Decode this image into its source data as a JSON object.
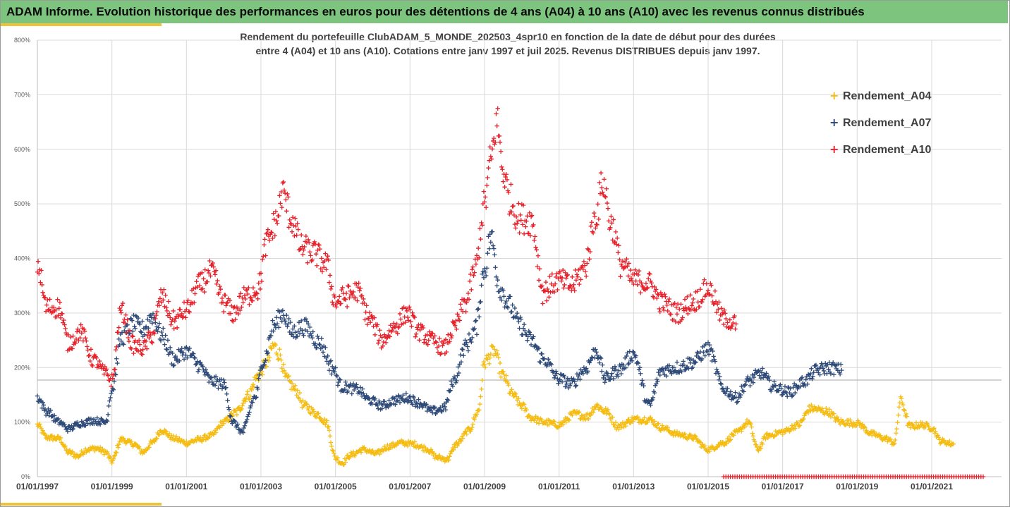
{
  "header": {
    "title": "ADAM Informe. Evolution historique des performances en euros pour des détentions de 4 ans (A04) à 10 ans (A10) avec les revenus connus distribués"
  },
  "colors": {
    "header_bg": "#7dc57f",
    "accent": "#f0c23a",
    "A04": "#f5bd14",
    "A07": "#2e4a78",
    "A10": "#e8202a"
  },
  "chart_data": {
    "type": "scatter",
    "title_line1": "Rendement du portefeuille ClubADAM_5_MONDE_202503_4spr10  en fonction de la date de début pour des durées",
    "title_line2": "entre 4 (A04) et 10 ans (A10). Cotations entre janv 1997 et juil 2025. Revenus DISTRIBUES depuis janv 1997.",
    "xlabel": "",
    "ylabel": "",
    "x_range": [
      "01/01/1997",
      "01/07/2022"
    ],
    "ylim": [
      0,
      800
    ],
    "y_ticks": [
      "0%",
      "100%",
      "200%",
      "300%",
      "400%",
      "500%",
      "600%",
      "700%",
      "800%"
    ],
    "x_ticks": [
      "01/01/1997",
      "01/01/1999",
      "01/01/2001",
      "01/01/2003",
      "01/01/2005",
      "01/01/2007",
      "01/01/2009",
      "01/01/2011",
      "01/01/2013",
      "01/01/2015",
      "01/01/2017",
      "01/01/2019",
      "01/01/2021"
    ],
    "reference_line_y": 177,
    "grid": true,
    "legend_position": "right",
    "marker": "+",
    "series": [
      {
        "name": "Rendement_A04",
        "points": [
          [
            "1997-01",
            95
          ],
          [
            "1997-04",
            72
          ],
          [
            "1997-08",
            70
          ],
          [
            "1997-11",
            45
          ],
          [
            "1998-02",
            38
          ],
          [
            "1998-05",
            50
          ],
          [
            "1998-08",
            52
          ],
          [
            "1998-11",
            45
          ],
          [
            "1999-01",
            28
          ],
          [
            "1999-04",
            68
          ],
          [
            "1999-08",
            60
          ],
          [
            "1999-11",
            45
          ],
          [
            "2000-02",
            62
          ],
          [
            "2000-05",
            85
          ],
          [
            "2000-09",
            70
          ],
          [
            "2001-01",
            62
          ],
          [
            "2001-05",
            68
          ],
          [
            "2001-09",
            75
          ],
          [
            "2002-01",
            100
          ],
          [
            "2002-05",
            118
          ],
          [
            "2002-09",
            150
          ],
          [
            "2002-12",
            185
          ],
          [
            "2003-03",
            210
          ],
          [
            "2003-05",
            240
          ],
          [
            "2003-07",
            225
          ],
          [
            "2003-09",
            180
          ],
          [
            "2003-12",
            160
          ],
          [
            "2004-03",
            130
          ],
          [
            "2004-07",
            115
          ],
          [
            "2004-10",
            100
          ],
          [
            "2005-01",
            35
          ],
          [
            "2005-03",
            25
          ],
          [
            "2005-06",
            40
          ],
          [
            "2005-10",
            50
          ],
          [
            "2006-02",
            42
          ],
          [
            "2006-06",
            55
          ],
          [
            "2006-10",
            62
          ],
          [
            "2007-02",
            60
          ],
          [
            "2007-06",
            52
          ],
          [
            "2007-10",
            35
          ],
          [
            "2008-01",
            32
          ],
          [
            "2008-04",
            60
          ],
          [
            "2008-08",
            85
          ],
          [
            "2008-11",
            120
          ],
          [
            "2009-01",
            210
          ],
          [
            "2009-04",
            230
          ],
          [
            "2009-07",
            185
          ],
          [
            "2009-10",
            150
          ],
          [
            "2010-01",
            130
          ],
          [
            "2010-04",
            108
          ],
          [
            "2010-08",
            100
          ],
          [
            "2011-01",
            95
          ],
          [
            "2011-06",
            115
          ],
          [
            "2011-10",
            110
          ],
          [
            "2012-01",
            130
          ],
          [
            "2012-04",
            120
          ],
          [
            "2012-08",
            92
          ],
          [
            "2013-01",
            105
          ],
          [
            "2013-06",
            105
          ],
          [
            "2013-10",
            90
          ],
          [
            "2014-03",
            78
          ],
          [
            "2014-08",
            72
          ],
          [
            "2015-01",
            50
          ],
          [
            "2015-06",
            62
          ],
          [
            "2015-10",
            80
          ],
          [
            "2016-02",
            100
          ],
          [
            "2016-05",
            50
          ],
          [
            "2016-08",
            75
          ],
          [
            "2017-01",
            82
          ],
          [
            "2017-06",
            95
          ],
          [
            "2017-10",
            125
          ],
          [
            "2018-03",
            120
          ],
          [
            "2018-08",
            100
          ],
          [
            "2019-01",
            98
          ],
          [
            "2019-06",
            78
          ],
          [
            "2019-10",
            70
          ],
          [
            "2020-01",
            62
          ],
          [
            "2020-03",
            140
          ],
          [
            "2020-06",
            92
          ],
          [
            "2020-10",
            95
          ],
          [
            "2021-01",
            90
          ],
          [
            "2021-04",
            65
          ],
          [
            "2021-08",
            60
          ]
        ]
      },
      {
        "name": "Rendement_A07",
        "points": [
          [
            "1997-01",
            145
          ],
          [
            "1997-04",
            120
          ],
          [
            "1997-08",
            100
          ],
          [
            "1997-11",
            88
          ],
          [
            "1998-03",
            98
          ],
          [
            "1998-07",
            103
          ],
          [
            "1998-11",
            100
          ],
          [
            "1999-01",
            160
          ],
          [
            "1999-04",
            255
          ],
          [
            "1999-08",
            280
          ],
          [
            "1999-11",
            270
          ],
          [
            "2000-02",
            295
          ],
          [
            "2000-05",
            260
          ],
          [
            "2000-09",
            215
          ],
          [
            "2001-01",
            230
          ],
          [
            "2001-05",
            205
          ],
          [
            "2001-09",
            175
          ],
          [
            "2002-01",
            170
          ],
          [
            "2002-04",
            100
          ],
          [
            "2002-07",
            82
          ],
          [
            "2002-11",
            145
          ],
          [
            "2003-02",
            215
          ],
          [
            "2003-05",
            275
          ],
          [
            "2003-08",
            300
          ],
          [
            "2003-11",
            265
          ],
          [
            "2004-03",
            275
          ],
          [
            "2004-08",
            245
          ],
          [
            "2004-12",
            200
          ],
          [
            "2005-03",
            165
          ],
          [
            "2005-08",
            160
          ],
          [
            "2005-12",
            140
          ],
          [
            "2006-04",
            130
          ],
          [
            "2006-08",
            140
          ],
          [
            "2006-12",
            145
          ],
          [
            "2007-04",
            135
          ],
          [
            "2007-08",
            120
          ],
          [
            "2007-12",
            125
          ],
          [
            "2008-03",
            175
          ],
          [
            "2008-07",
            240
          ],
          [
            "2008-10",
            270
          ],
          [
            "2009-01",
            380
          ],
          [
            "2009-03",
            440
          ],
          [
            "2009-06",
            345
          ],
          [
            "2009-09",
            315
          ],
          [
            "2009-12",
            280
          ],
          [
            "2010-04",
            250
          ],
          [
            "2010-08",
            215
          ],
          [
            "2011-01",
            180
          ],
          [
            "2011-05",
            170
          ],
          [
            "2011-09",
            195
          ],
          [
            "2012-01",
            230
          ],
          [
            "2012-04",
            180
          ],
          [
            "2012-08",
            195
          ],
          [
            "2013-01",
            225
          ],
          [
            "2013-06",
            130
          ],
          [
            "2013-10",
            195
          ],
          [
            "2014-03",
            200
          ],
          [
            "2014-08",
            210
          ],
          [
            "2015-01",
            235
          ],
          [
            "2015-06",
            160
          ],
          [
            "2015-10",
            145
          ],
          [
            "2016-02",
            175
          ],
          [
            "2016-06",
            190
          ],
          [
            "2016-10",
            165
          ],
          [
            "2017-03",
            155
          ],
          [
            "2017-08",
            175
          ],
          [
            "2017-12",
            195
          ],
          [
            "2018-04",
            200
          ],
          [
            "2018-08",
            195
          ]
        ]
      },
      {
        "name": "Rendement_A10",
        "points": [
          [
            "1997-01",
            390
          ],
          [
            "1997-04",
            310
          ],
          [
            "1997-08",
            310
          ],
          [
            "1997-11",
            245
          ],
          [
            "1998-03",
            265
          ],
          [
            "1998-07",
            215
          ],
          [
            "1998-11",
            190
          ],
          [
            "1999-01",
            175
          ],
          [
            "1999-04",
            305
          ],
          [
            "1999-08",
            240
          ],
          [
            "1999-11",
            235
          ],
          [
            "2000-02",
            260
          ],
          [
            "2000-05",
            330
          ],
          [
            "2000-09",
            285
          ],
          [
            "2001-01",
            305
          ],
          [
            "2001-05",
            350
          ],
          [
            "2001-09",
            375
          ],
          [
            "2002-01",
            320
          ],
          [
            "2002-04",
            300
          ],
          [
            "2002-08",
            330
          ],
          [
            "2002-12",
            345
          ],
          [
            "2003-03",
            430
          ],
          [
            "2003-06",
            470
          ],
          [
            "2003-08",
            520
          ],
          [
            "2003-11",
            470
          ],
          [
            "2004-02",
            420
          ],
          [
            "2004-06",
            410
          ],
          [
            "2004-10",
            390
          ],
          [
            "2005-01",
            320
          ],
          [
            "2005-04",
            330
          ],
          [
            "2005-08",
            340
          ],
          [
            "2005-12",
            290
          ],
          [
            "2006-04",
            250
          ],
          [
            "2006-08",
            275
          ],
          [
            "2006-12",
            300
          ],
          [
            "2007-04",
            265
          ],
          [
            "2007-08",
            250
          ],
          [
            "2007-12",
            235
          ],
          [
            "2008-03",
            270
          ],
          [
            "2008-07",
            320
          ],
          [
            "2008-10",
            380
          ],
          [
            "2009-01",
            500
          ],
          [
            "2009-03",
            580
          ],
          [
            "2009-05",
            650
          ],
          [
            "2009-07",
            560
          ],
          [
            "2009-09",
            510
          ],
          [
            "2009-12",
            475
          ],
          [
            "2010-04",
            470
          ],
          [
            "2010-08",
            340
          ],
          [
            "2011-01",
            360
          ],
          [
            "2011-05",
            350
          ],
          [
            "2011-09",
            380
          ],
          [
            "2012-01",
            480
          ],
          [
            "2012-03",
            540
          ],
          [
            "2012-06",
            460
          ],
          [
            "2012-09",
            390
          ],
          [
            "2013-01",
            360
          ],
          [
            "2013-06",
            355
          ],
          [
            "2013-10",
            320
          ],
          [
            "2014-03",
            300
          ],
          [
            "2014-08",
            320
          ],
          [
            "2015-01",
            345
          ],
          [
            "2015-06",
            290
          ],
          [
            "2015-10",
            280
          ]
        ]
      }
    ],
    "zero_band": {
      "series": "Rendement_A10",
      "from": "2015-06",
      "to": "2022-06",
      "value": 0
    }
  }
}
